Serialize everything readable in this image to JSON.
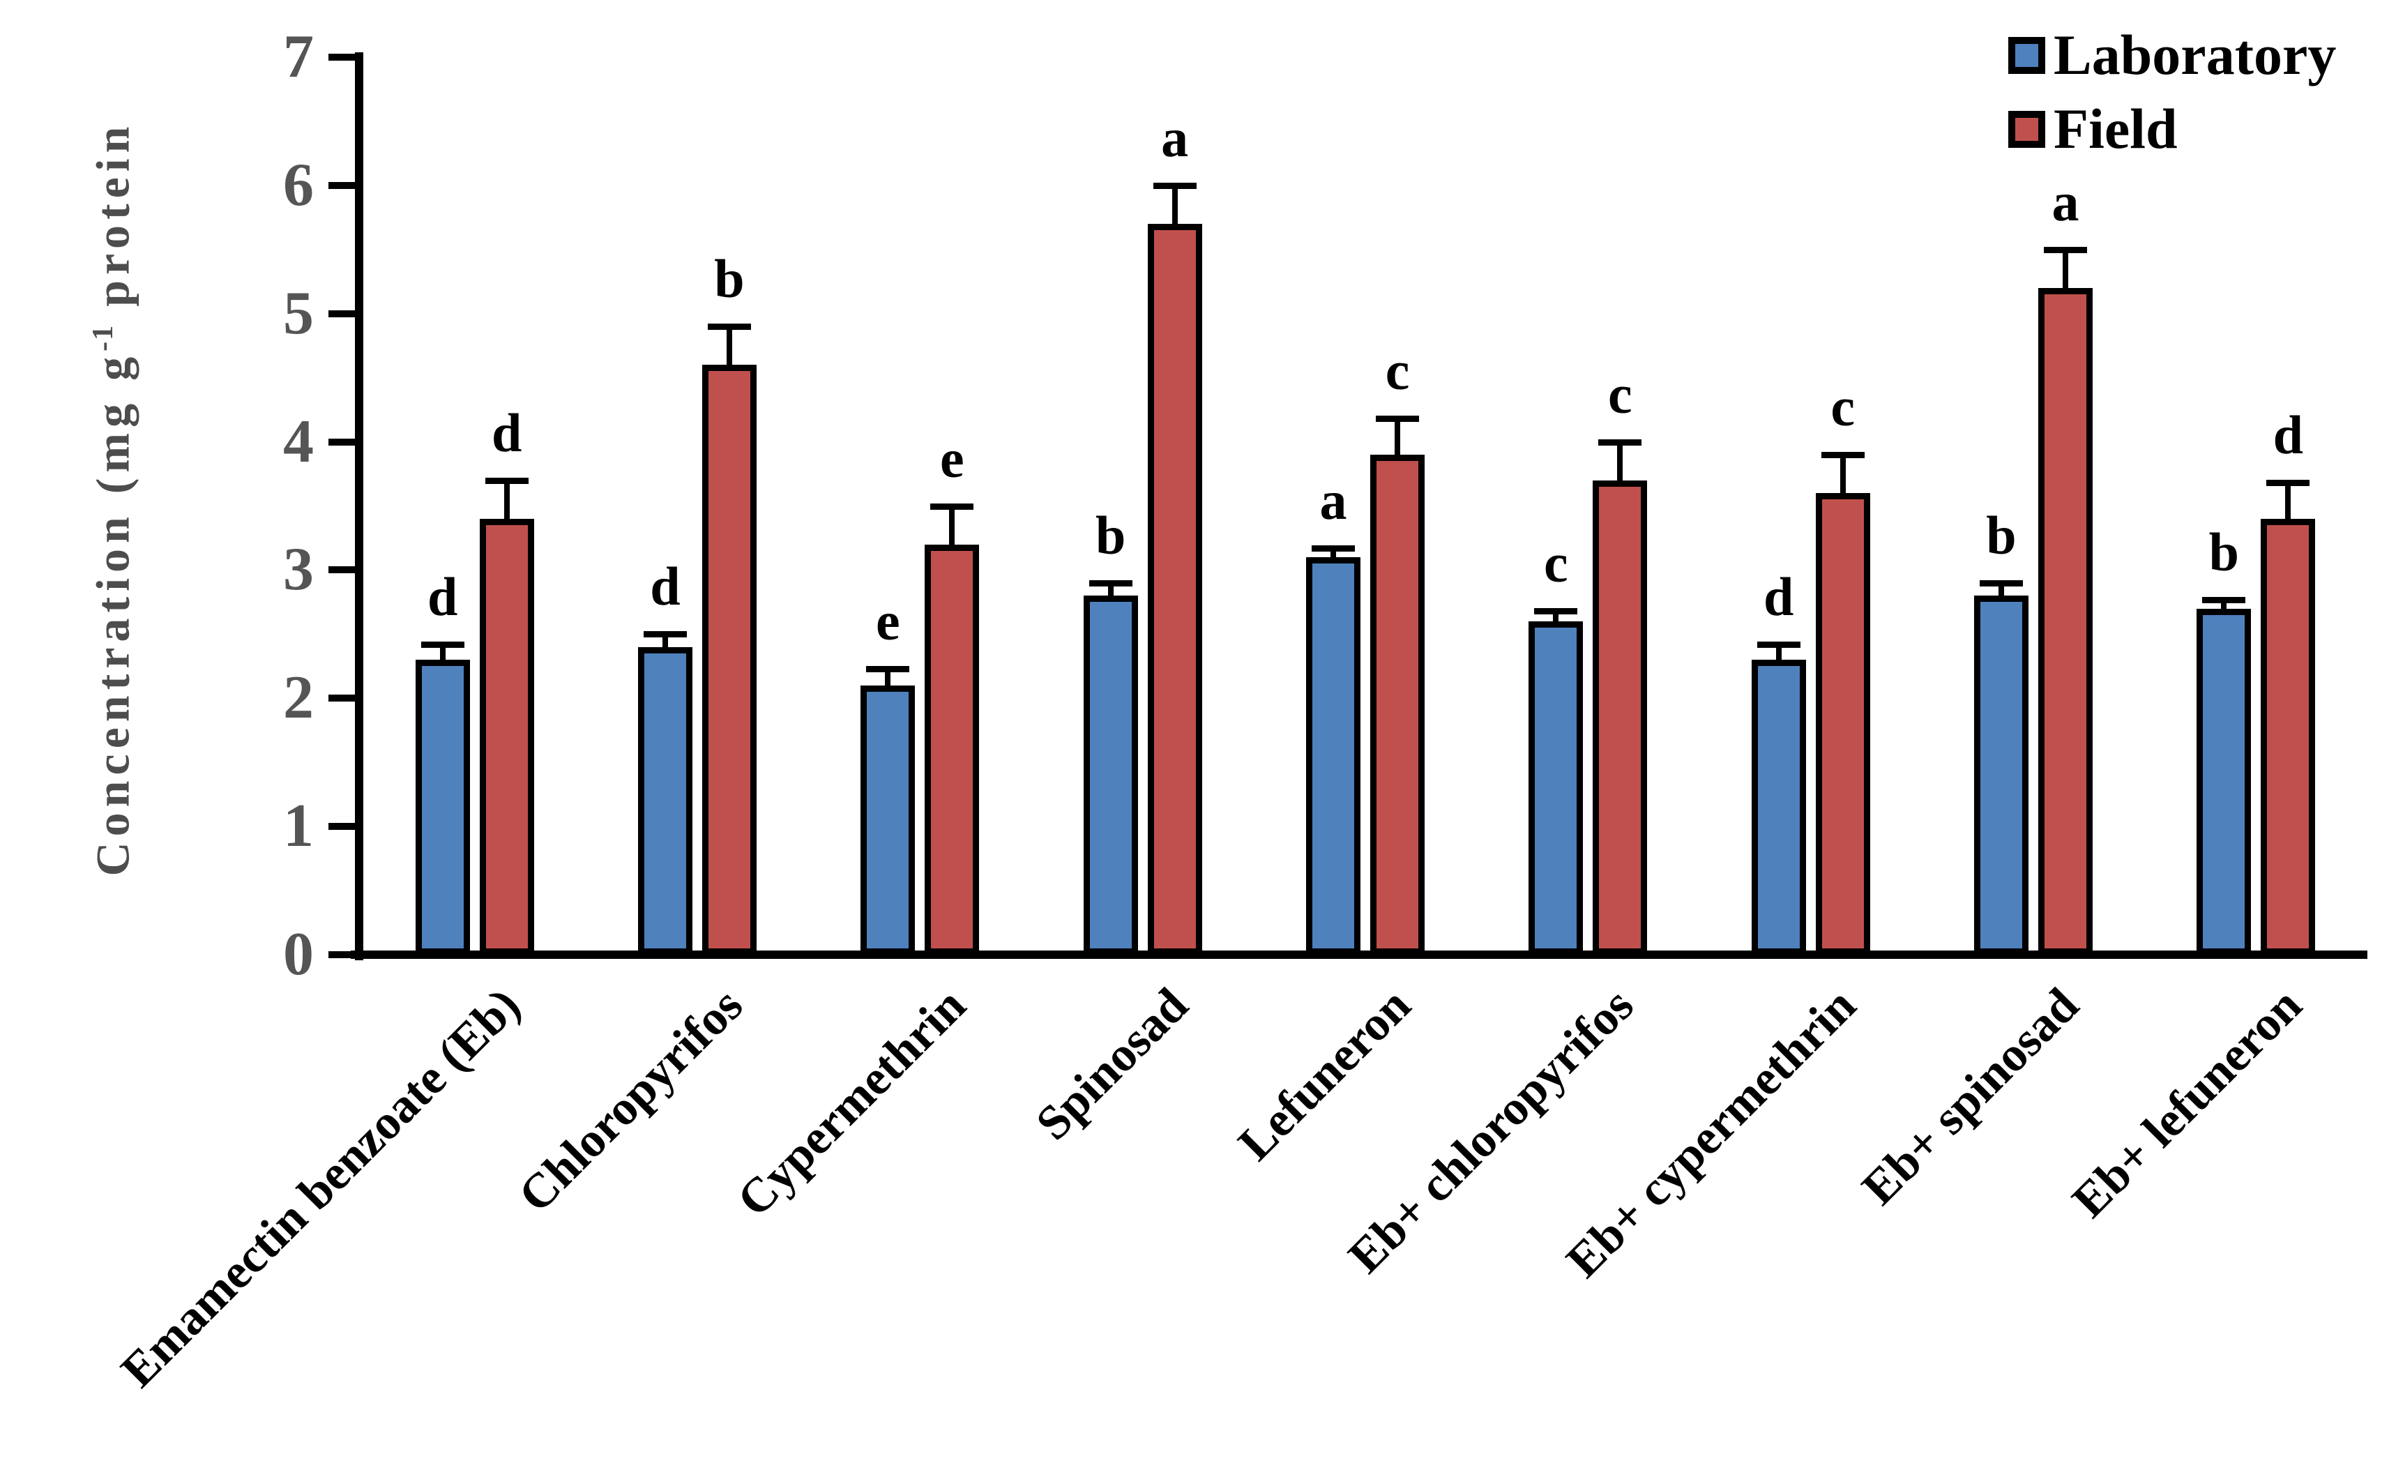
{
  "figure": {
    "background": "#ffffff",
    "axis_color": "#000000",
    "tick_label_color": "#555555"
  },
  "y_axis": {
    "label_prefix": "Concentration (mg g",
    "label_sup": "-1",
    "label_suffix": " protein",
    "ticks": [
      "0",
      "1",
      "2",
      "3",
      "4",
      "5",
      "6",
      "7"
    ]
  },
  "legend": {
    "position": "top-right",
    "items": [
      {
        "label": "Laboratory",
        "color": "#4F81BD"
      },
      {
        "label": "Field",
        "color": "#C0504D"
      }
    ]
  },
  "chart_data": {
    "type": "bar",
    "title": "",
    "xlabel": "",
    "ylabel": "Concentration (mg g-1 protein",
    "ylim": [
      0,
      7
    ],
    "yticks": [
      0,
      1,
      2,
      3,
      4,
      5,
      6,
      7
    ],
    "grid": false,
    "legend_position": "top-right",
    "categories": [
      "Emamectin benzoate (Eb)",
      "Chloropyrifos",
      "Cypermethrin",
      "Spinosad",
      "Lefuneron",
      "Eb+ chloropyrifos",
      "Eb+ cypermethrin",
      "Eb+ spinosad",
      "Eb+ lefuneron"
    ],
    "series": [
      {
        "name": "Laboratory",
        "color": "#4F81BD",
        "values": [
          2.3,
          2.4,
          2.1,
          2.8,
          3.1,
          2.6,
          2.3,
          2.8,
          2.7
        ],
        "errors": [
          0.12,
          0.1,
          0.13,
          0.1,
          0.07,
          0.08,
          0.12,
          0.1,
          0.07
        ],
        "letters": [
          "d",
          "d",
          "e",
          "b",
          "a",
          "c",
          "d",
          "b",
          "b"
        ]
      },
      {
        "name": "Field",
        "color": "#C0504D",
        "values": [
          3.4,
          4.6,
          3.2,
          5.7,
          3.9,
          3.7,
          3.6,
          5.2,
          3.4
        ],
        "errors": [
          0.3,
          0.3,
          0.3,
          0.3,
          0.28,
          0.3,
          0.3,
          0.3,
          0.28
        ],
        "letters": [
          "d",
          "b",
          "e",
          "a",
          "c",
          "c",
          "c",
          "a",
          "d"
        ]
      }
    ]
  }
}
